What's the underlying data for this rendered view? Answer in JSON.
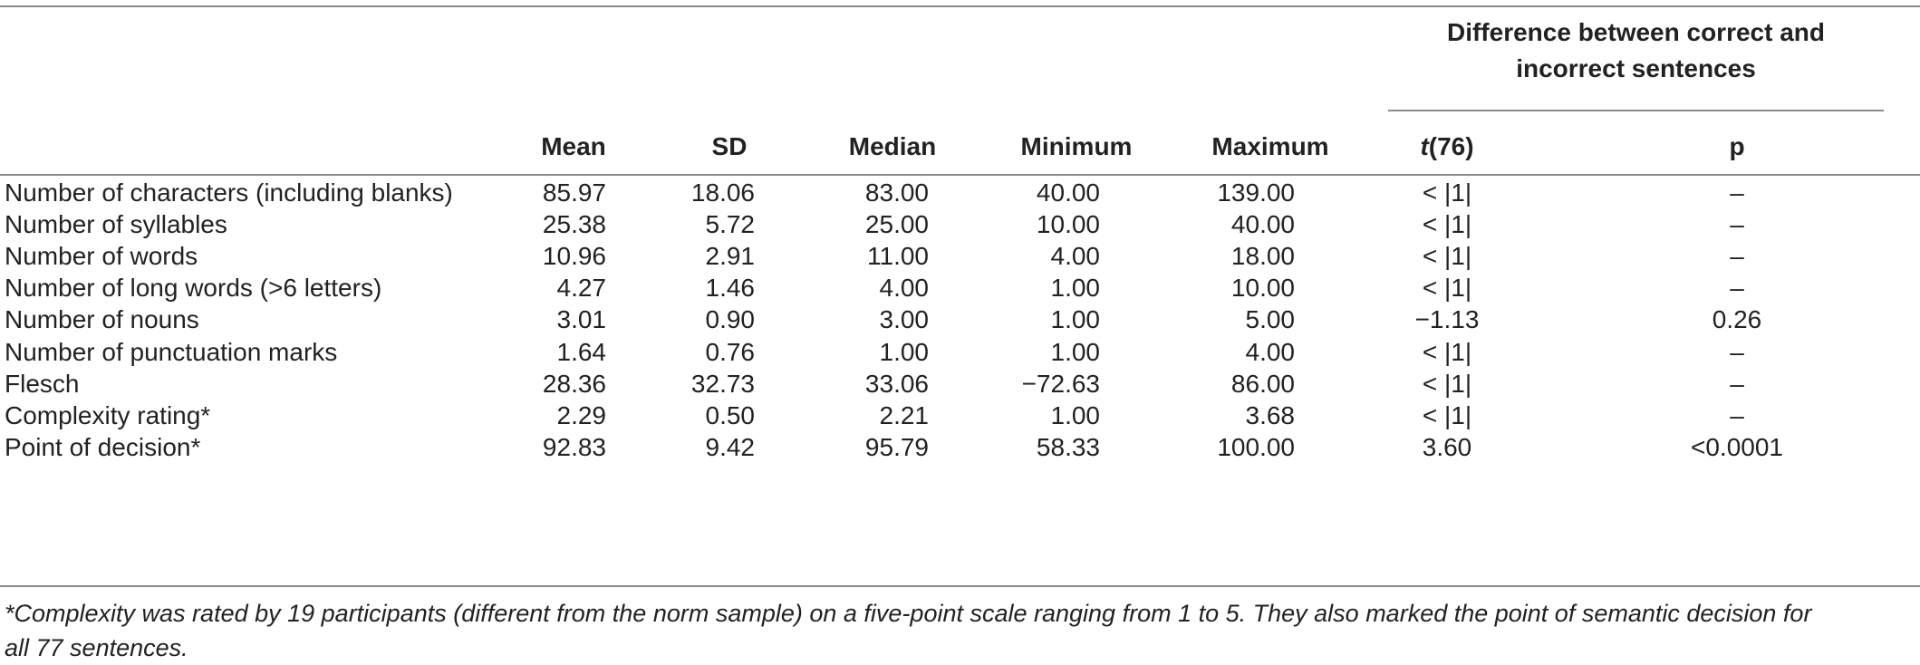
{
  "table": {
    "group_header": [
      "Difference between correct and",
      "incorrect sentences"
    ],
    "columns": [
      "Mean",
      "SD",
      "Median",
      "Minimum",
      "Maximum",
      "t",
      "(76)",
      "p"
    ],
    "rows": [
      {
        "label": "Number of characters (including blanks)",
        "cells": [
          "85.97",
          "18.06",
          "83.00",
          "40.00",
          "139.00",
          "< |1|",
          "–"
        ]
      },
      {
        "label": "Number of syllables",
        "cells": [
          "25.38",
          "5.72",
          "25.00",
          "10.00",
          "40.00",
          "< |1|",
          "–"
        ]
      },
      {
        "label": "Number of words",
        "cells": [
          "10.96",
          "2.91",
          "11.00",
          "4.00",
          "18.00",
          "< |1|",
          "–"
        ]
      },
      {
        "label": "Number of long words (>6 letters)",
        "cells": [
          "4.27",
          "1.46",
          "4.00",
          "1.00",
          "10.00",
          "< |1|",
          "–"
        ]
      },
      {
        "label": "Number of nouns",
        "cells": [
          "3.01",
          "0.90",
          "3.00",
          "1.00",
          "5.00",
          "−1.13",
          "0.26"
        ]
      },
      {
        "label": "Number of punctuation marks",
        "cells": [
          "1.64",
          "0.76",
          "1.00",
          "1.00",
          "4.00",
          "< |1|",
          "–"
        ]
      },
      {
        "label": "Flesch",
        "cells": [
          "28.36",
          "32.73",
          "33.06",
          "−72.63",
          "86.00",
          "< |1|",
          "–"
        ]
      },
      {
        "label": "Complexity rating*",
        "cells": [
          "2.29",
          "0.50",
          "2.21",
          "1.00",
          "3.68",
          "< |1|",
          "–"
        ]
      },
      {
        "label": "Point of decision*",
        "cells": [
          "92.83",
          "9.42",
          "95.79",
          "58.33",
          "100.00",
          "3.60",
          "<0.0001"
        ]
      }
    ]
  },
  "footnote": [
    "*Complexity was rated by 19 participants (different from the norm sample) on a five-point scale ranging from 1 to 5. They also marked the point of semantic decision for",
    "all 77 sentences."
  ]
}
